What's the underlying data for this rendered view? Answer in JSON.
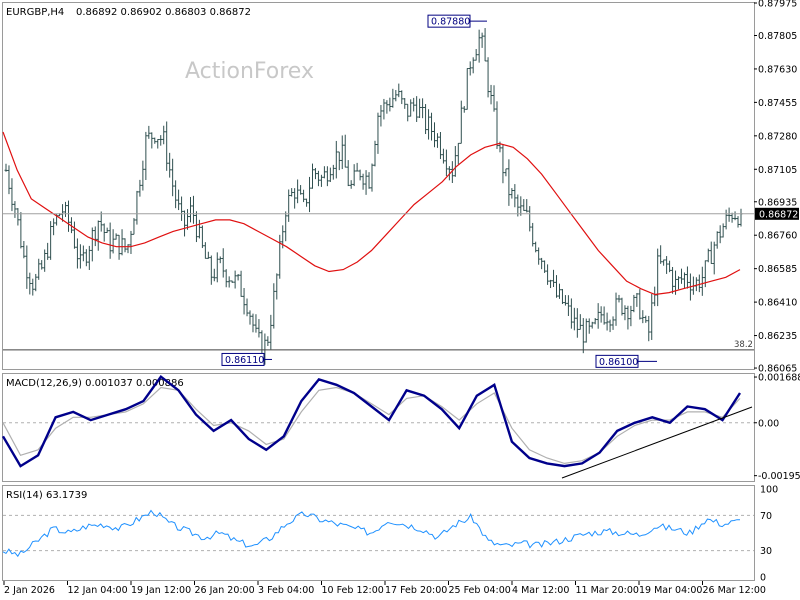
{
  "chart_data": [
    {
      "type": "line",
      "subtype": "ohlc-bars",
      "symbol_label": "EURGBP,H4",
      "ohlc_label": "0.86892 0.86902 0.86803 0.86872",
      "watermark": "ActionForex",
      "ylim": [
        0.8606,
        0.87975
      ],
      "y_ticks": [
        "0.87975",
        "0.87805",
        "0.87630",
        "0.87455",
        "0.87280",
        "0.87105",
        "0.86935",
        "0.86760",
        "0.86585",
        "0.86410",
        "0.86235",
        "0.86065"
      ],
      "current_price": "0.86872",
      "fib_label": "38.2",
      "fib_level": 0.8616,
      "annotations": [
        {
          "label": "0.87880",
          "value": 0.8788
        },
        {
          "label": "0.86110",
          "value": 0.8611
        },
        {
          "label": "0.86100",
          "value": 0.861
        }
      ],
      "x_labels": [
        "2 Jan 2026",
        "12 Jan 04:00",
        "19 Jan 12:00",
        "26 Jan 20:00",
        "3 Feb 04:00",
        "10 Feb 12:00",
        "17 Feb 20:00",
        "25 Feb 04:00",
        "4 Mar 12:00",
        "11 Mar 20:00",
        "19 Mar 04:00",
        "26 Mar 12:00"
      ],
      "price_path": [
        0.871,
        0.869,
        0.8662,
        0.865,
        0.866,
        0.868,
        0.869,
        0.868,
        0.866,
        0.8672,
        0.8685,
        0.8672,
        0.8672,
        0.8668,
        0.8695,
        0.8725,
        0.873,
        0.8725,
        0.87,
        0.868,
        0.869,
        0.867,
        0.8655,
        0.866,
        0.8655,
        0.865,
        0.864,
        0.862,
        0.8618,
        0.865,
        0.869,
        0.87,
        0.869,
        0.871,
        0.8705,
        0.8715,
        0.872,
        0.87,
        0.871,
        0.8705,
        0.874,
        0.8745,
        0.875,
        0.874,
        0.8745,
        0.8735,
        0.873,
        0.872,
        0.871,
        0.874,
        0.877,
        0.878,
        0.875,
        0.872,
        0.87,
        0.869,
        0.8685,
        0.867,
        0.866,
        0.8645,
        0.864,
        0.863,
        0.8625,
        0.8625,
        0.8635,
        0.8635,
        0.864,
        0.8638,
        0.864,
        0.8622,
        0.866,
        0.866,
        0.865,
        0.8655,
        0.865,
        0.8655,
        0.867,
        0.868,
        0.8688,
        0.8687
      ],
      "series": [
        {
          "name": "MA",
          "values": [
            0.873,
            0.871,
            0.8695,
            0.869,
            0.8685,
            0.868,
            0.8675,
            0.8672,
            0.867,
            0.867,
            0.8672,
            0.8675,
            0.8678,
            0.868,
            0.8682,
            0.8684,
            0.8684,
            0.8682,
            0.8678,
            0.8674,
            0.867,
            0.8665,
            0.866,
            0.8657,
            0.8658,
            0.8662,
            0.8668,
            0.8676,
            0.8684,
            0.8692,
            0.8698,
            0.8704,
            0.8712,
            0.8718,
            0.8722,
            0.8724,
            0.8722,
            0.8716,
            0.8708,
            0.8698,
            0.8688,
            0.8678,
            0.8668,
            0.866,
            0.8652,
            0.8648,
            0.8645,
            0.8646,
            0.8648,
            0.865,
            0.8652,
            0.8654,
            0.8658
          ]
        }
      ]
    },
    {
      "type": "line",
      "title": "MACD(12,26,9) 0.001037 0.000886",
      "ylim": [
        -0.00215,
        0.0018
      ],
      "y_ticks": [
        "0.001688",
        "0.00",
        "-0.001953"
      ],
      "series": [
        {
          "name": "MACD",
          "values": [
            -0.0005,
            -0.0016,
            -0.0012,
            0.0002,
            0.0004,
            0.0001,
            0.0003,
            0.0005,
            0.0008,
            0.0017,
            0.0012,
            0.0003,
            -0.0003,
            0.0001,
            -0.0006,
            -0.001,
            -0.0005,
            0.0008,
            0.0016,
            0.0014,
            0.0011,
            0.0006,
            0.0001,
            0.0012,
            0.001,
            0.0005,
            -0.0002,
            0.001,
            0.0014,
            -0.0007,
            -0.0013,
            -0.0015,
            -0.0016,
            -0.0015,
            -0.0011,
            -0.0003,
            0.0,
            0.0002,
            0.0,
            0.0006,
            0.0005,
            0.0001,
            0.0011
          ]
        },
        {
          "name": "Signal",
          "values": [
            0.0,
            -0.0012,
            -0.001,
            -0.0002,
            0.0002,
            0.0002,
            0.0003,
            0.0004,
            0.0007,
            0.0013,
            0.0012,
            0.0005,
            -0.0001,
            0.0,
            -0.0003,
            -0.0008,
            -0.0006,
            0.0004,
            0.0012,
            0.0013,
            0.0011,
            0.0007,
            0.0003,
            0.0009,
            0.001,
            0.0006,
            0.0001,
            0.0007,
            0.0011,
            -0.0002,
            -0.001,
            -0.0013,
            -0.0015,
            -0.0014,
            -0.0011,
            -0.0005,
            -0.0001,
            0.0001,
            0.0001,
            0.0004,
            0.0004,
            0.0002,
            0.0009
          ]
        }
      ]
    },
    {
      "type": "line",
      "title": "RSI(14) 63.1739",
      "ylim": [
        0,
        100
      ],
      "y_ticks": [
        "100",
        "70",
        "30",
        "0"
      ],
      "series": [
        {
          "name": "RSI",
          "values": [
            30,
            25,
            40,
            55,
            50,
            58,
            60,
            55,
            65,
            75,
            60,
            52,
            45,
            50,
            40,
            35,
            45,
            62,
            72,
            65,
            60,
            55,
            50,
            65,
            60,
            55,
            45,
            60,
            68,
            40,
            35,
            38,
            36,
            40,
            45,
            50,
            52,
            50,
            48,
            58,
            55,
            50,
            66,
            60,
            64
          ]
        }
      ]
    }
  ]
}
